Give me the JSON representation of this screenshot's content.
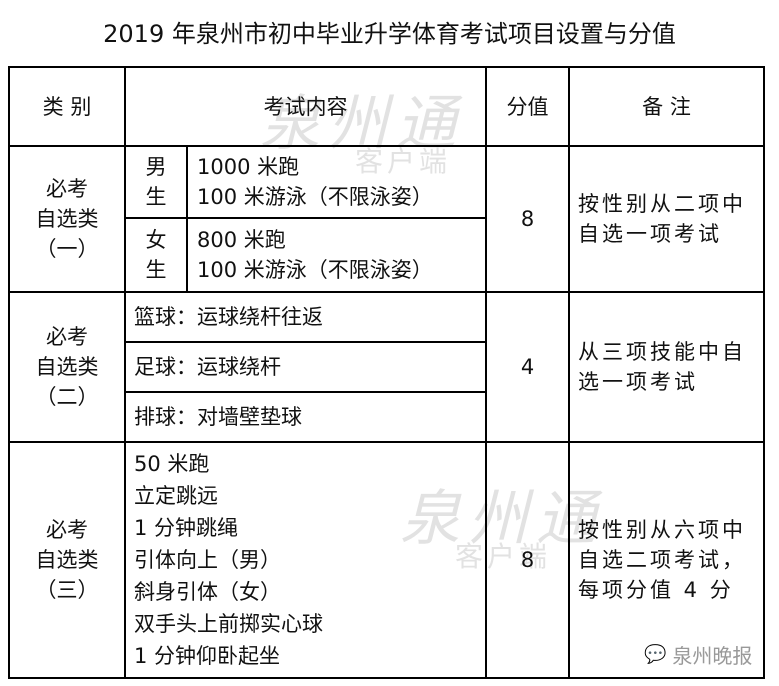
{
  "title": "2019 年泉州市初中毕业升学体育考试项目设置与分值",
  "headers": {
    "category": "类  别",
    "content": "考试内容",
    "score": "分值",
    "note": "备  注"
  },
  "rows": [
    {
      "category": "必考\n自选类\n（一）",
      "male_label": "男\n生",
      "male_items": "1000 米跑\n100 米游泳（不限泳姿）",
      "female_label": "女\n生",
      "female_items": "800 米跑\n100 米游泳（不限泳姿）",
      "score": "8",
      "note": "按性别从二项中自选一项考试"
    },
    {
      "category": "必考\n自选类\n（二）",
      "items": [
        "篮球：运球绕杆往返",
        "足球：运球绕杆",
        "排球：对墙壁垫球"
      ],
      "score": "4",
      "note": "从三项技能中自选一项考试"
    },
    {
      "category": "必考\n自选类\n（三）",
      "items": "50 米跑\n立定跳远\n1 分钟跳绳\n引体向上（男）\n斜身引体（女）\n双手头上前掷实心球\n1 分钟仰卧起坐",
      "score": "8",
      "note": "按性别从六项中自选二项考试，每项分值 4 分"
    }
  ],
  "watermark": {
    "main": "泉州通",
    "sub": "客户端"
  },
  "source": "泉州晚报"
}
